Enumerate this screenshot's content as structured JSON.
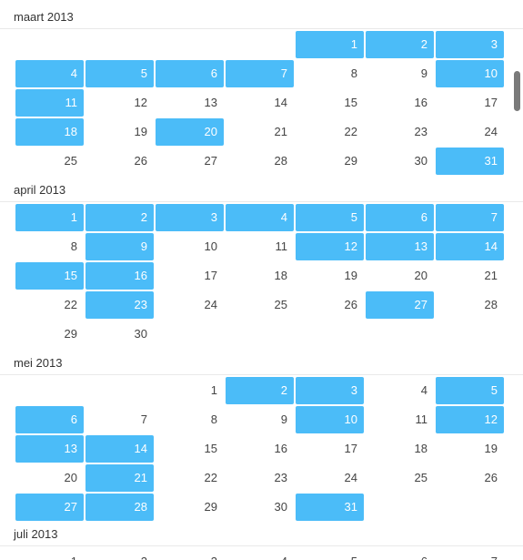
{
  "months": [
    {
      "title": "maart 2013",
      "first_col": 4,
      "days": 31,
      "selected": [
        1,
        2,
        3,
        4,
        5,
        6,
        7,
        10,
        11,
        18,
        20,
        31
      ]
    },
    {
      "title": "april 2013",
      "first_col": 0,
      "days": 30,
      "selected": [
        1,
        2,
        3,
        4,
        5,
        6,
        7,
        9,
        12,
        13,
        14,
        15,
        16,
        23,
        27
      ]
    },
    {
      "title": "mei 2013",
      "first_col": 2,
      "days": 31,
      "selected": [
        2,
        3,
        5,
        6,
        10,
        12,
        13,
        14,
        21,
        27,
        28,
        31
      ]
    },
    {
      "title": "juli 2013",
      "first_col": 0,
      "days": 31,
      "selected": []
    }
  ],
  "colors": {
    "selected": "#4bbcf8",
    "selected_text": "#ffffff"
  }
}
